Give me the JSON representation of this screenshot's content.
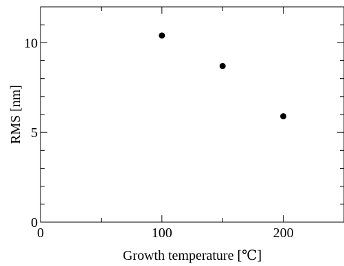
{
  "chart_data": {
    "type": "scatter",
    "title": "",
    "xlabel": "Growth temperature [℃]",
    "ylabel": "RMS [nm]",
    "xlim": [
      0,
      250
    ],
    "ylim": [
      0,
      12
    ],
    "x_ticks": [
      0,
      100,
      200
    ],
    "x_tick_labels": [
      "0",
      "100",
      "200"
    ],
    "x_minor_step": 50,
    "y_ticks": [
      0,
      5,
      10
    ],
    "y_tick_labels": [
      "0",
      "5",
      "10"
    ],
    "y_minor_step": 1,
    "grid": false,
    "series": [
      {
        "x": [
          100,
          150,
          200
        ],
        "y": [
          10.4,
          8.7,
          5.9
        ]
      }
    ]
  }
}
